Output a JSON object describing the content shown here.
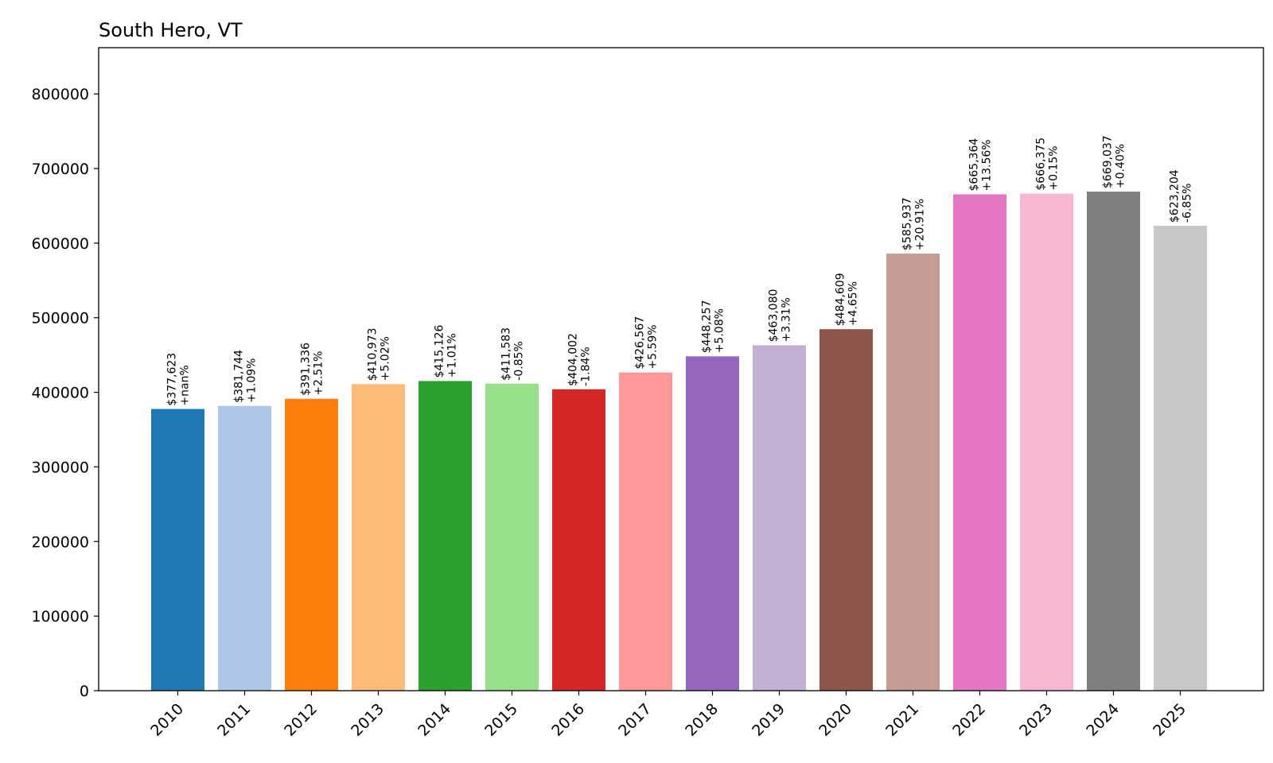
{
  "chart_data": {
    "type": "bar",
    "title": "South Hero, VT",
    "xlabel": "",
    "ylabel": "",
    "categories": [
      "2010",
      "2011",
      "2012",
      "2013",
      "2014",
      "2015",
      "2016",
      "2017",
      "2018",
      "2019",
      "2020",
      "2021",
      "2022",
      "2023",
      "2024",
      "2025"
    ],
    "values": [
      377623,
      381744,
      391336,
      410973,
      415126,
      411583,
      404002,
      426567,
      448257,
      463080,
      484609,
      585937,
      665364,
      666375,
      669037,
      623204
    ],
    "value_labels": [
      "$377,623",
      "$381,744",
      "$391,336",
      "$410,973",
      "$415,126",
      "$411,583",
      "$404,002",
      "$426,567",
      "$448,257",
      "$463,080",
      "$484,609",
      "$585,937",
      "$665,364",
      "$666,375",
      "$669,037",
      "$623,204"
    ],
    "change_labels": [
      "+nan%",
      "+1.09%",
      "+2.51%",
      "+5.02%",
      "+1.01%",
      "-0.85%",
      "-1.84%",
      "+5.59%",
      "+5.08%",
      "+3.31%",
      "+4.65%",
      "+20.91%",
      "+13.56%",
      "+0.15%",
      "+0.40%",
      "-6.85%"
    ],
    "colors": [
      "#1f77b4",
      "#aec7e8",
      "#ff7f0e",
      "#ffbb78",
      "#2ca02c",
      "#98df8a",
      "#d62728",
      "#ff9896",
      "#9467bd",
      "#c5b0d5",
      "#8c564b",
      "#c49c94",
      "#e377c2",
      "#f7b6d2",
      "#7f7f7f",
      "#c7c7c7"
    ],
    "yticks": [
      "0",
      "100000",
      "200000",
      "300000",
      "400000",
      "500000",
      "600000",
      "700000",
      "800000"
    ],
    "ylim": [
      0,
      862000
    ],
    "grid": false,
    "legend": "none"
  }
}
